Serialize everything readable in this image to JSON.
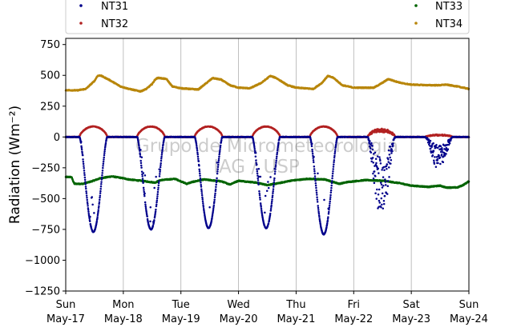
{
  "chart_data": {
    "type": "scatter",
    "ylabel": "Radiation (Wm⁻²)",
    "ylim": [
      -1250,
      800
    ],
    "yticks": [
      -1250,
      -1000,
      -750,
      -500,
      -250,
      0,
      250,
      500,
      750
    ],
    "ytick_labels": [
      "−1250",
      "−1000",
      "−750",
      "−500",
      "−250",
      "0",
      "250",
      "500",
      "750"
    ],
    "x_range_days": [
      0,
      7
    ],
    "xticks": [
      {
        "day": "Sun",
        "date": "May-17"
      },
      {
        "day": "Mon",
        "date": "May-18"
      },
      {
        "day": "Tue",
        "date": "May-19"
      },
      {
        "day": "Wed",
        "date": "May-20"
      },
      {
        "day": "Thu",
        "date": "May-21"
      },
      {
        "day": "Fri",
        "date": "May-22"
      },
      {
        "day": "Sat",
        "date": "May-23"
      },
      {
        "day": "Sun",
        "date": "May-24"
      }
    ],
    "grid": "vertical",
    "legend": "top",
    "watermark": [
      "Grupo de Micrometeorologia",
      "IAG / USP"
    ],
    "series": [
      {
        "name": "NT31",
        "color": "#00008b",
        "night_value": 0,
        "daily_min": [
          -770,
          -750,
          -740,
          -740,
          -790,
          -680,
          -270
        ],
        "daily_note": "daytime negative dip, scattered on May-22 and May-23"
      },
      {
        "name": "NT32",
        "color": "#b22222",
        "night_value": 0,
        "daily_max": [
          85,
          85,
          85,
          85,
          85,
          70,
          20
        ]
      },
      {
        "name": "NT33",
        "color": "#006400",
        "points": [
          [
            0,
            -325
          ],
          [
            0.1,
            -325
          ],
          [
            0.15,
            -380
          ],
          [
            0.3,
            -380
          ],
          [
            0.45,
            -360
          ],
          [
            0.6,
            -335
          ],
          [
            0.8,
            -320
          ],
          [
            1.0,
            -335
          ],
          [
            1.1,
            -345
          ],
          [
            1.3,
            -355
          ],
          [
            1.55,
            -370
          ],
          [
            1.65,
            -350
          ],
          [
            1.9,
            -340
          ],
          [
            2.1,
            -380
          ],
          [
            2.2,
            -365
          ],
          [
            2.4,
            -345
          ],
          [
            2.7,
            -360
          ],
          [
            2.85,
            -385
          ],
          [
            3.0,
            -355
          ],
          [
            3.3,
            -370
          ],
          [
            3.5,
            -390
          ],
          [
            3.7,
            -375
          ],
          [
            3.9,
            -355
          ],
          [
            4.2,
            -340
          ],
          [
            4.5,
            -345
          ],
          [
            4.75,
            -380
          ],
          [
            4.9,
            -365
          ],
          [
            5.2,
            -350
          ],
          [
            5.5,
            -355
          ],
          [
            5.8,
            -375
          ],
          [
            6.0,
            -395
          ],
          [
            6.3,
            -405
          ],
          [
            6.5,
            -395
          ],
          [
            6.6,
            -410
          ],
          [
            6.8,
            -410
          ],
          [
            6.9,
            -390
          ],
          [
            7.0,
            -360
          ]
        ]
      },
      {
        "name": "NT34",
        "color": "#b8860b",
        "points": [
          [
            0,
            380
          ],
          [
            0.2,
            378
          ],
          [
            0.35,
            390
          ],
          [
            0.5,
            455
          ],
          [
            0.55,
            495
          ],
          [
            0.6,
            500
          ],
          [
            0.75,
            465
          ],
          [
            0.95,
            410
          ],
          [
            1.1,
            390
          ],
          [
            1.3,
            370
          ],
          [
            1.4,
            390
          ],
          [
            1.5,
            430
          ],
          [
            1.55,
            465
          ],
          [
            1.6,
            480
          ],
          [
            1.75,
            470
          ],
          [
            1.85,
            410
          ],
          [
            2.0,
            395
          ],
          [
            2.3,
            385
          ],
          [
            2.45,
            440
          ],
          [
            2.55,
            478
          ],
          [
            2.7,
            465
          ],
          [
            2.85,
            420
          ],
          [
            3.0,
            400
          ],
          [
            3.2,
            395
          ],
          [
            3.4,
            440
          ],
          [
            3.55,
            495
          ],
          [
            3.65,
            480
          ],
          [
            3.85,
            420
          ],
          [
            4.0,
            400
          ],
          [
            4.3,
            390
          ],
          [
            4.45,
            440
          ],
          [
            4.55,
            495
          ],
          [
            4.65,
            480
          ],
          [
            4.8,
            420
          ],
          [
            5.0,
            400
          ],
          [
            5.35,
            400
          ],
          [
            5.5,
            440
          ],
          [
            5.6,
            470
          ],
          [
            5.7,
            455
          ],
          [
            5.85,
            435
          ],
          [
            6.0,
            425
          ],
          [
            6.3,
            420
          ],
          [
            6.5,
            420
          ],
          [
            6.6,
            425
          ],
          [
            6.8,
            410
          ],
          [
            7.0,
            390
          ]
        ]
      }
    ]
  }
}
